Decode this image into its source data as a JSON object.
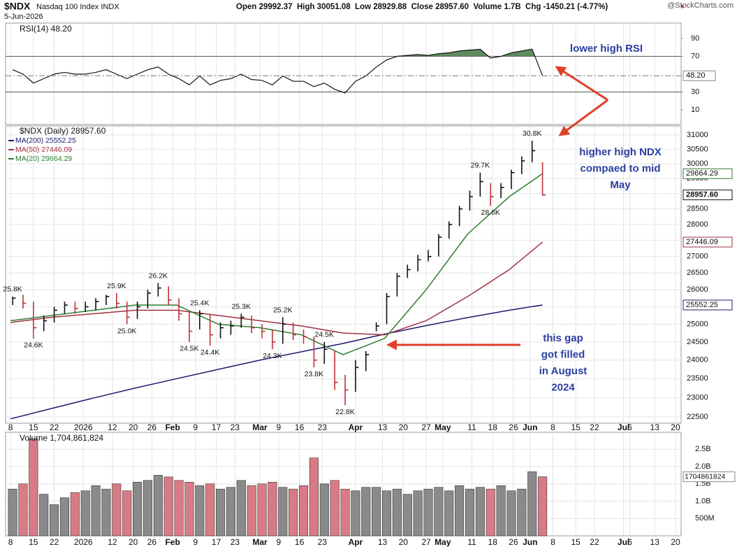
{
  "header": {
    "symbol": "$NDX",
    "name": "Nasdaq 100 Index INDX",
    "date": "5-Jun-2026",
    "quote": "Open 29992.37  High 30051.08  Low 28929.88  Close 28957.60  Volume 1.7B  Chg -1450.21 (-4.77%)",
    "chg_marker": "▼",
    "source": "@StockCharts.com"
  },
  "annotations": {
    "rsi_note": [
      "lower high RSI"
    ],
    "ndx_note": [
      "higher high NDX",
      "compaed to mid",
      "May"
    ],
    "gap_note": [
      "this gap",
      "got filled",
      "in August",
      "2024"
    ]
  },
  "chart_data": {
    "type": "stock",
    "xlim": [
      -0.24,
      32.27
    ],
    "xticks": [
      {
        "value": 0,
        "label": "8"
      },
      {
        "value": 1.1,
        "label": "15"
      },
      {
        "value": 2.1,
        "label": "22"
      },
      {
        "value": 3.5,
        "label": "2026"
      },
      {
        "value": 4.9,
        "label": "12"
      },
      {
        "value": 5.9,
        "label": "20"
      },
      {
        "value": 6.8,
        "label": "26"
      },
      {
        "value": 7.8,
        "label": "Feb"
      },
      {
        "value": 8.9,
        "label": "9"
      },
      {
        "value": 9.9,
        "label": "17"
      },
      {
        "value": 10.8,
        "label": "23"
      },
      {
        "value": 12,
        "label": "Mar"
      },
      {
        "value": 12.9,
        "label": "9"
      },
      {
        "value": 13.9,
        "label": "16"
      },
      {
        "value": 15,
        "label": "23"
      },
      {
        "value": 16.6,
        "label": "Apr"
      },
      {
        "value": 17.9,
        "label": "13"
      },
      {
        "value": 18.9,
        "label": "20"
      },
      {
        "value": 20,
        "label": "27"
      },
      {
        "value": 20.8,
        "label": "May"
      },
      {
        "value": 22.2,
        "label": "11"
      },
      {
        "value": 23.2,
        "label": "18"
      },
      {
        "value": 24.2,
        "label": "26"
      },
      {
        "value": 25,
        "label": "Jun"
      },
      {
        "value": 26.1,
        "label": "8"
      },
      {
        "value": 27.2,
        "label": "15"
      },
      {
        "value": 28.1,
        "label": "22"
      },
      {
        "value": 29.5,
        "label": "Jul"
      },
      {
        "value": 29.8,
        "label": "6"
      },
      {
        "value": 31,
        "label": "13"
      },
      {
        "value": 32,
        "label": "20"
      }
    ],
    "rsi": {
      "name": "RSI(14) 48.20",
      "color": "#111111",
      "fill_color": "#4f7f4f",
      "ylim": [
        -6.5,
        107.3
      ],
      "yticks": [
        10,
        30,
        70,
        90
      ],
      "level_lines": [
        70,
        30
      ],
      "last_label": "48.20",
      "values": [
        55,
        50,
        40,
        45,
        50,
        52,
        50,
        50,
        52,
        55,
        50,
        45,
        50,
        55,
        58,
        50,
        45,
        38,
        48,
        38,
        43,
        45,
        50,
        44,
        43,
        38,
        48,
        42,
        42,
        36,
        40,
        33,
        29,
        42,
        48,
        58,
        66,
        70,
        71,
        72,
        71,
        73,
        74,
        76,
        77,
        78,
        68,
        70,
        74,
        76,
        78,
        48.2
      ]
    },
    "price": {
      "name": "$NDX (Daily) 28957.60",
      "log": true,
      "ylim": [
        22340,
        31320
      ],
      "up_color": "#111111",
      "down_color": "#c0303a",
      "last_label": "28957.60",
      "yticks": [
        22500,
        23000,
        23500,
        24000,
        24500,
        25000,
        25500,
        26000,
        26500,
        27000,
        27500,
        28000,
        28500,
        29000,
        29500,
        30000,
        30500,
        31000
      ],
      "x": [
        0.1,
        0.6,
        1.1,
        1.6,
        2.1,
        2.6,
        3.1,
        3.6,
        4.1,
        4.6,
        5.1,
        5.6,
        6.1,
        6.6,
        7.1,
        7.6,
        8.1,
        8.6,
        9.1,
        9.6,
        10.1,
        10.6,
        11.1,
        11.6,
        12.1,
        12.6,
        13.1,
        13.6,
        14.1,
        14.6,
        15.1,
        15.6,
        16.1,
        16.6,
        17.1,
        17.6,
        18.1,
        18.6,
        19.1,
        19.6,
        20.1,
        20.6,
        21.1,
        21.6,
        22.1,
        22.6,
        23.1,
        23.6,
        24.1,
        24.6,
        25.1,
        25.6
      ],
      "high": [
        25800,
        25850,
        25650,
        25250,
        25500,
        25650,
        25650,
        25650,
        25750,
        25850,
        25900,
        25650,
        25650,
        26000,
        26200,
        26100,
        25750,
        25350,
        25400,
        25300,
        25050,
        25100,
        25300,
        25250,
        25000,
        24850,
        25200,
        25050,
        24850,
        24650,
        24500,
        24250,
        23600,
        24000,
        24250,
        25050,
        25900,
        26500,
        26750,
        27050,
        27200,
        27700,
        28100,
        28600,
        29100,
        29700,
        29350,
        29350,
        29800,
        30250,
        30800,
        30051.08
      ],
      "low": [
        25550,
        25450,
        24600,
        24800,
        25050,
        25300,
        25300,
        25350,
        25400,
        25550,
        25450,
        25000,
        25150,
        25450,
        25800,
        25550,
        25100,
        24500,
        24850,
        24400,
        24600,
        24700,
        24900,
        24750,
        24600,
        24300,
        24450,
        24550,
        24450,
        23800,
        23900,
        23200,
        22800,
        23150,
        23700,
        24800,
        25000,
        25800,
        26350,
        26550,
        26850,
        27000,
        27550,
        27950,
        28450,
        28900,
        28600,
        28850,
        29150,
        29650,
        30050,
        28929.88
      ],
      "close": [
        25750,
        25600,
        24900,
        25100,
        25400,
        25550,
        25450,
        25500,
        25650,
        25800,
        25600,
        25200,
        25500,
        25900,
        26050,
        25700,
        25300,
        24800,
        25300,
        24700,
        24900,
        24950,
        25200,
        24900,
        24800,
        24500,
        25000,
        24700,
        24650,
        24000,
        24300,
        23400,
        23200,
        23800,
        24150,
        24950,
        25800,
        26400,
        26600,
        26900,
        27000,
        27600,
        28000,
        28500,
        28900,
        29400,
        28900,
        29200,
        29700,
        30100,
        30450,
        28957.6
      ]
    },
    "mas": [
      {
        "name": "MA(200) 25552.25",
        "color": "#1c1c6e",
        "last_label": "25552.25",
        "x": [
          0,
          2,
          4,
          6,
          8,
          10,
          12,
          14,
          16,
          18,
          20,
          22,
          24,
          25.6
        ],
        "values": [
          22450,
          22720,
          22990,
          23250,
          23500,
          23750,
          24000,
          24230,
          24460,
          24720,
          24960,
          25190,
          25400,
          25552.25
        ]
      },
      {
        "name": "MA(50) 27446.09",
        "color": "#a03040",
        "last_label": "27446.09",
        "x": [
          0,
          2,
          4,
          6,
          8,
          10,
          12,
          14,
          16,
          18,
          20,
          22,
          24,
          25.6
        ],
        "values": [
          25050,
          25200,
          25300,
          25400,
          25400,
          25250,
          25100,
          24950,
          24750,
          24700,
          25100,
          25800,
          26600,
          27446.09
        ]
      },
      {
        "name": "MA(20) 29664.29",
        "color": "#2e7d32",
        "last_label": "29664.29",
        "x": [
          0,
          2,
          4,
          6,
          8,
          10,
          12,
          14,
          16,
          18,
          20,
          22,
          24,
          25.6
        ],
        "values": [
          25100,
          25250,
          25400,
          25550,
          25550,
          25000,
          24900,
          24700,
          24150,
          24600,
          26000,
          27700,
          28900,
          29664.29
        ]
      }
    ],
    "price_labels": [
      {
        "text": "25.8K",
        "x": 0.1,
        "y": 25800
      },
      {
        "text": "24.6K",
        "x": 1.1,
        "y": 24600
      },
      {
        "text": "25.9K",
        "x": 5.1,
        "y": 25900
      },
      {
        "text": "26.2K",
        "x": 7.1,
        "y": 26200
      },
      {
        "text": "25.0K",
        "x": 5.6,
        "y": 25000
      },
      {
        "text": "25.4K",
        "x": 9.1,
        "y": 25400
      },
      {
        "text": "24.5K",
        "x": 8.6,
        "y": 24500
      },
      {
        "text": "24.4K",
        "x": 9.6,
        "y": 24400
      },
      {
        "text": "25.3K",
        "x": 11.1,
        "y": 25300
      },
      {
        "text": "25.2K",
        "x": 13.1,
        "y": 25200
      },
      {
        "text": "24.3K",
        "x": 12.6,
        "y": 24300
      },
      {
        "text": "24.5K",
        "x": 15.1,
        "y": 24500
      },
      {
        "text": "23.8K",
        "x": 14.6,
        "y": 23800
      },
      {
        "text": "22.8K",
        "x": 16.1,
        "y": 22800
      },
      {
        "text": "29.7K",
        "x": 22.6,
        "y": 29700
      },
      {
        "text": "28.6K",
        "x": 23.1,
        "y": 28600
      },
      {
        "text": "30.8K",
        "x": 25.1,
        "y": 30800
      }
    ],
    "volume": {
      "name": "Volume 1,704,861,824",
      "ylim": [
        0,
        2990000000
      ],
      "last_label": "1704861824",
      "yticks": [
        {
          "value": 500000000,
          "label": "500M"
        },
        {
          "value": 1000000000,
          "label": "1.0B"
        },
        {
          "value": 1500000000,
          "label": "1.5B"
        },
        {
          "value": 2000000000,
          "label": "2.0B"
        },
        {
          "value": 2500000000,
          "label": "2.5B"
        }
      ],
      "values": [
        1350000000,
        1500000000,
        2800000000,
        1200000000,
        900000000,
        1100000000,
        1250000000,
        1300000000,
        1450000000,
        1350000000,
        1500000000,
        1300000000,
        1550000000,
        1600000000,
        1750000000,
        1700000000,
        1600000000,
        1550000000,
        1450000000,
        1500000000,
        1350000000,
        1400000000,
        1600000000,
        1450000000,
        1500000000,
        1550000000,
        1400000000,
        1350000000,
        1450000000,
        2250000000,
        1500000000,
        1600000000,
        1350000000,
        1300000000,
        1400000000,
        1400000000,
        1300000000,
        1350000000,
        1200000000,
        1300000000,
        1350000000,
        1400000000,
        1300000000,
        1450000000,
        1350000000,
        1400000000,
        1350000000,
        1450000000,
        1300000000,
        1350000000,
        1850000000,
        1704861824
      ]
    }
  }
}
